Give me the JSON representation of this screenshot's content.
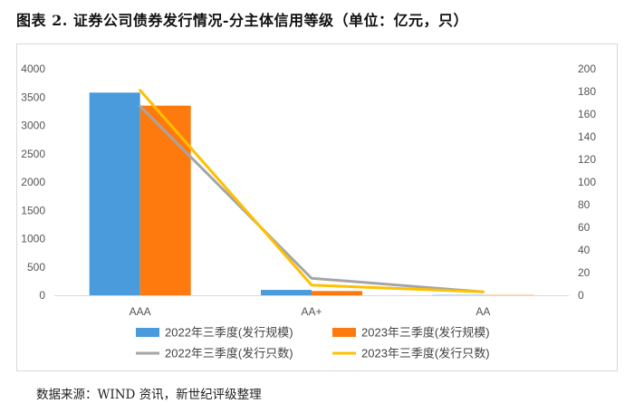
{
  "title": "图表 2. 证券公司债券发行情况-分主体信用等级（单位：亿元，只）",
  "source": "数据来源：WIND 资讯，新世纪评级整理",
  "chart_data": {
    "type": "bar",
    "title": "图表 2. 证券公司债券发行情况-分主体信用等级（单位：亿元，只）",
    "categories": [
      "AAA",
      "AA+",
      "AA"
    ],
    "ylim": [
      0,
      4000
    ],
    "yticks": [
      0,
      500,
      1000,
      1500,
      2000,
      2500,
      3000,
      3500,
      4000
    ],
    "y2lim": [
      0,
      200
    ],
    "y2ticks": [
      0,
      20,
      40,
      60,
      80,
      100,
      120,
      140,
      160,
      180,
      200
    ],
    "series": [
      {
        "name": "2022年三季度(发行规模)",
        "type": "bar",
        "axis": "left",
        "color": "#4a9bdc",
        "values": [
          3580,
          95,
          5
        ]
      },
      {
        "name": "2023年三季度(发行规模)",
        "type": "bar",
        "axis": "left",
        "color": "#ff7a0e",
        "values": [
          3350,
          75,
          5
        ]
      },
      {
        "name": "2022年三季度(发行只数)",
        "type": "line",
        "axis": "right",
        "color": "#a5a5a5",
        "values": [
          167,
          15,
          3
        ]
      },
      {
        "name": "2023年三季度(发行只数)",
        "type": "line",
        "axis": "right",
        "color": "#ffc000",
        "values": [
          181,
          9,
          3
        ]
      }
    ],
    "legend_position": "bottom"
  }
}
